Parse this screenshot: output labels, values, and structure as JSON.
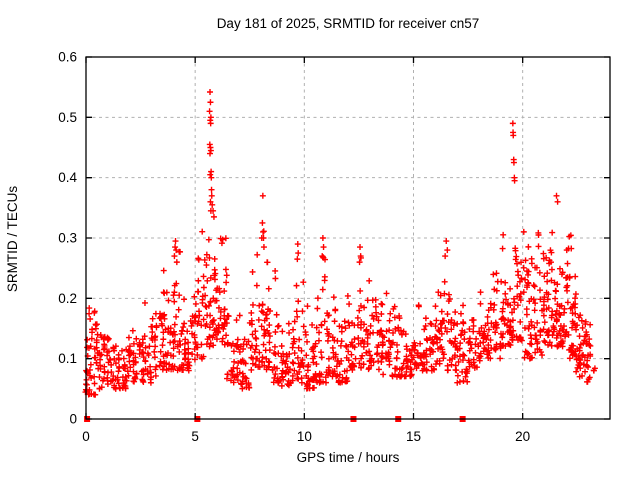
{
  "colors": {
    "series": "#ff0000",
    "grid": "#b0b0b0",
    "border": "#000000",
    "background": "#ffffff",
    "text": "#000000"
  },
  "chart_data": {
    "type": "scatter",
    "title": "Day 181 of 2025, SRMTID for receiver cn57",
    "xlabel": "GPS time / hours",
    "ylabel": "SRMTID / TECUs",
    "xlim": [
      0,
      24
    ],
    "ylim": [
      0,
      0.6
    ],
    "x_ticks": [
      0,
      5,
      10,
      15,
      20
    ],
    "y_ticks": [
      0,
      0.1,
      0.2,
      0.3,
      0.4,
      0.5,
      0.6
    ],
    "grid": true,
    "legend": "none",
    "marker": "plus",
    "marker_color": "#ff0000",
    "baseline_markers": {
      "marker": "filled-square",
      "y": 0,
      "x": [
        0.05,
        5.1,
        12.25,
        14.3,
        17.25
      ]
    },
    "outlier_points": [
      [
        5.66,
        0.51
      ],
      [
        5.67,
        0.455
      ],
      [
        5.68,
        0.542
      ],
      [
        5.68,
        0.44
      ],
      [
        5.69,
        0.495
      ],
      [
        5.69,
        0.405
      ],
      [
        5.7,
        0.525
      ],
      [
        5.7,
        0.45
      ],
      [
        5.7,
        0.36
      ],
      [
        5.71,
        0.49
      ],
      [
        5.72,
        0.5
      ],
      [
        5.72,
        0.445
      ],
      [
        5.72,
        0.345
      ],
      [
        5.73,
        0.41
      ],
      [
        5.74,
        0.4
      ],
      [
        5.75,
        0.38
      ],
      [
        5.76,
        0.37
      ],
      [
        5.78,
        0.355
      ],
      [
        5.82,
        0.345
      ],
      [
        5.86,
        0.335
      ],
      [
        4.05,
        0.27
      ],
      [
        4.08,
        0.285
      ],
      [
        4.1,
        0.295
      ],
      [
        4.13,
        0.28
      ],
      [
        4.16,
        0.26
      ],
      [
        8.05,
        0.3
      ],
      [
        8.08,
        0.325
      ],
      [
        8.1,
        0.37
      ],
      [
        8.11,
        0.31
      ],
      [
        8.13,
        0.3
      ],
      [
        8.15,
        0.285
      ],
      [
        9.68,
        0.265
      ],
      [
        9.7,
        0.29
      ],
      [
        9.72,
        0.275
      ],
      [
        10.82,
        0.27
      ],
      [
        10.85,
        0.3
      ],
      [
        10.88,
        0.285
      ],
      [
        12.53,
        0.26
      ],
      [
        12.55,
        0.285
      ],
      [
        12.58,
        0.27
      ],
      [
        16.45,
        0.27
      ],
      [
        16.5,
        0.295
      ],
      [
        16.55,
        0.28
      ],
      [
        19.55,
        0.49
      ],
      [
        19.56,
        0.475
      ],
      [
        19.57,
        0.47
      ],
      [
        19.59,
        0.43
      ],
      [
        19.6,
        0.425
      ],
      [
        19.62,
        0.4
      ],
      [
        19.63,
        0.395
      ],
      [
        21.55,
        0.37
      ],
      [
        21.6,
        0.36
      ]
    ],
    "density_segments": [
      [
        0.0,
        0.5,
        46,
        0.04,
        0.2
      ],
      [
        0.5,
        1.0,
        36,
        0.05,
        0.2
      ],
      [
        1.0,
        1.5,
        30,
        0.05,
        0.16
      ],
      [
        1.5,
        2.0,
        30,
        0.05,
        0.17
      ],
      [
        2.0,
        2.5,
        30,
        0.06,
        0.18
      ],
      [
        2.5,
        3.0,
        30,
        0.06,
        0.2
      ],
      [
        3.0,
        3.5,
        30,
        0.07,
        0.23
      ],
      [
        3.5,
        4.0,
        34,
        0.08,
        0.27
      ],
      [
        4.0,
        4.5,
        36,
        0.08,
        0.3
      ],
      [
        4.5,
        5.0,
        30,
        0.08,
        0.22
      ],
      [
        5.0,
        5.5,
        34,
        0.1,
        0.33
      ],
      [
        5.5,
        6.0,
        36,
        0.12,
        0.35
      ],
      [
        6.0,
        6.5,
        34,
        0.12,
        0.33
      ],
      [
        6.5,
        7.0,
        28,
        0.06,
        0.2
      ],
      [
        7.0,
        7.5,
        28,
        0.05,
        0.22
      ],
      [
        7.5,
        8.0,
        32,
        0.08,
        0.3
      ],
      [
        8.0,
        8.5,
        34,
        0.08,
        0.32
      ],
      [
        8.5,
        9.0,
        30,
        0.06,
        0.28
      ],
      [
        9.0,
        9.5,
        28,
        0.05,
        0.18
      ],
      [
        9.5,
        10.0,
        30,
        0.06,
        0.27
      ],
      [
        10.0,
        10.5,
        28,
        0.05,
        0.2
      ],
      [
        10.5,
        11.0,
        34,
        0.06,
        0.3
      ],
      [
        11.0,
        11.5,
        32,
        0.07,
        0.26
      ],
      [
        11.5,
        12.0,
        28,
        0.06,
        0.2
      ],
      [
        12.0,
        12.5,
        30,
        0.08,
        0.24
      ],
      [
        12.5,
        13.0,
        30,
        0.08,
        0.28
      ],
      [
        13.0,
        13.5,
        30,
        0.08,
        0.25
      ],
      [
        13.5,
        14.0,
        28,
        0.07,
        0.24
      ],
      [
        14.0,
        14.5,
        28,
        0.07,
        0.19
      ],
      [
        14.5,
        15.0,
        28,
        0.07,
        0.2
      ],
      [
        15.0,
        15.5,
        28,
        0.08,
        0.2
      ],
      [
        15.5,
        16.0,
        28,
        0.08,
        0.22
      ],
      [
        16.0,
        16.5,
        30,
        0.09,
        0.28
      ],
      [
        16.5,
        17.0,
        30,
        0.08,
        0.3
      ],
      [
        17.0,
        17.5,
        28,
        0.06,
        0.22
      ],
      [
        17.5,
        18.0,
        28,
        0.08,
        0.24
      ],
      [
        18.0,
        18.5,
        30,
        0.1,
        0.26
      ],
      [
        18.5,
        19.0,
        32,
        0.1,
        0.28
      ],
      [
        19.0,
        19.5,
        34,
        0.12,
        0.33
      ],
      [
        19.5,
        20.0,
        38,
        0.13,
        0.36
      ],
      [
        20.0,
        20.5,
        38,
        0.1,
        0.33
      ],
      [
        20.5,
        21.0,
        38,
        0.1,
        0.34
      ],
      [
        21.0,
        21.5,
        40,
        0.12,
        0.36
      ],
      [
        21.5,
        22.0,
        40,
        0.12,
        0.36
      ],
      [
        22.0,
        22.4,
        34,
        0.1,
        0.34
      ],
      [
        22.4,
        22.8,
        34,
        0.07,
        0.26
      ],
      [
        22.8,
        23.1,
        20,
        0.06,
        0.2
      ],
      [
        23.1,
        23.3,
        6,
        0.08,
        0.15
      ]
    ]
  }
}
